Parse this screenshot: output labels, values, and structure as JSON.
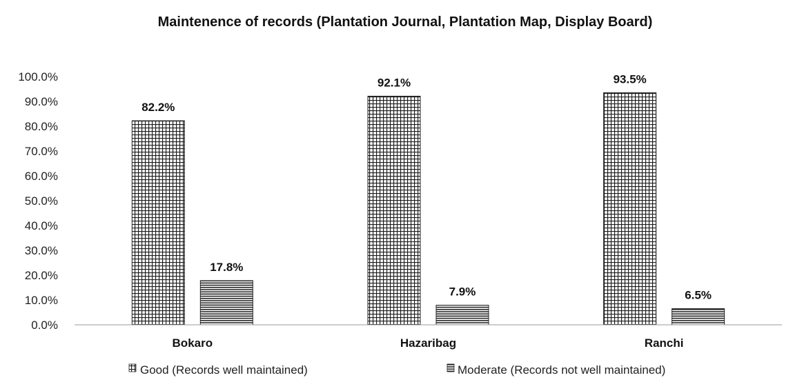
{
  "chart_data": {
    "type": "bar",
    "title": "Maintenence of records (Plantation Journal, Plantation Map, Display Board)",
    "xlabel": "",
    "ylabel": "",
    "categories": [
      "Bokaro",
      "Hazaribag",
      "Ranchi"
    ],
    "series": [
      {
        "name": "Good (Records well maintained)",
        "values": [
          82.2,
          92.1,
          93.5
        ],
        "labels": [
          "82.2%",
          "92.1%",
          "93.5%"
        ],
        "pattern": "grid"
      },
      {
        "name": "Moderate (Records not well maintained)",
        "values": [
          17.8,
          7.9,
          6.5
        ],
        "labels": [
          "17.8%",
          "7.9%",
          "6.5%"
        ],
        "pattern": "horizontal-lines"
      }
    ],
    "ylim": [
      0,
      100
    ],
    "yticks": [
      0,
      10,
      20,
      30,
      40,
      50,
      60,
      70,
      80,
      90,
      100
    ],
    "ytick_labels": [
      "0.0%",
      "10.0%",
      "20.0%",
      "30.0%",
      "40.0%",
      "50.0%",
      "60.0%",
      "70.0%",
      "80.0%",
      "90.0%",
      "100.0%"
    ],
    "grid": false,
    "legend_position": "bottom",
    "colors": {
      "bar_stroke": "#222222",
      "pattern": "#1a1a1a",
      "axis": "#9a9a9a"
    }
  }
}
